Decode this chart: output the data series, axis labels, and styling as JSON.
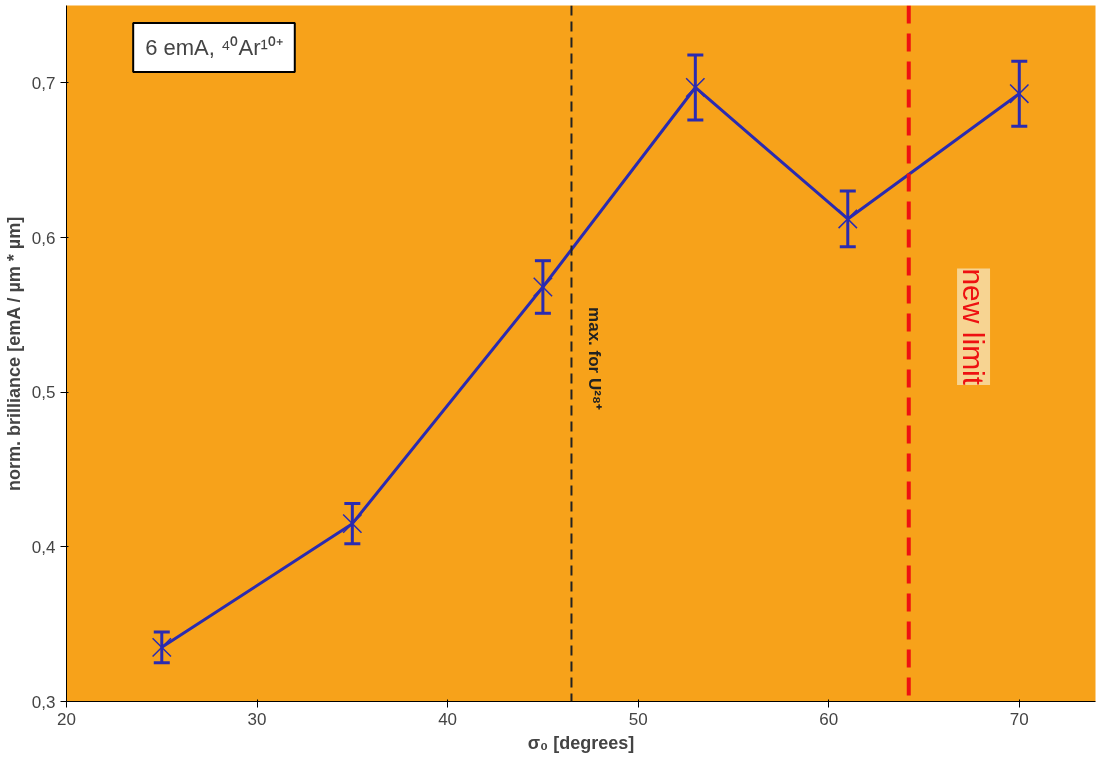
{
  "chart_data": {
    "type": "line",
    "xlabel": "σ₀ [degrees]",
    "ylabel": "norm. brilliance [emA / µm * µm]",
    "x": [
      25,
      35,
      45,
      53,
      61,
      70
    ],
    "series": [
      {
        "color": "#2b2bb0",
        "values": [
          0.335,
          0.415,
          0.568,
          0.697,
          0.612,
          0.693
        ],
        "errors": [
          0.01,
          0.013,
          0.017,
          0.021,
          0.018,
          0.021
        ]
      }
    ],
    "xlim": [
      20,
      74
    ],
    "xticks": [
      20,
      30,
      40,
      50,
      60,
      70
    ],
    "ylim": [
      0.3,
      0.75
    ],
    "yticks": [
      {
        "value": 0.3,
        "label": "0,3"
      },
      {
        "value": 0.4,
        "label": "0,4"
      },
      {
        "value": 0.5,
        "label": "0,5"
      },
      {
        "value": 0.6,
        "label": "0,6"
      },
      {
        "value": 0.7,
        "label": "0,7"
      }
    ],
    "ref_lines": [
      {
        "axis": "x",
        "value": 46.5,
        "label": "max.  for U²⁸⁺",
        "color": "#222222",
        "line_style": "dashed"
      },
      {
        "axis": "x",
        "value": 64.2,
        "label": "new limit",
        "color": "#ee1111",
        "line_style": "dashed"
      }
    ],
    "annotations": [
      "6 emA, ⁴⁰Ar¹⁰⁺"
    ],
    "marker": "cross",
    "line_style": "solid",
    "grid": false
  }
}
